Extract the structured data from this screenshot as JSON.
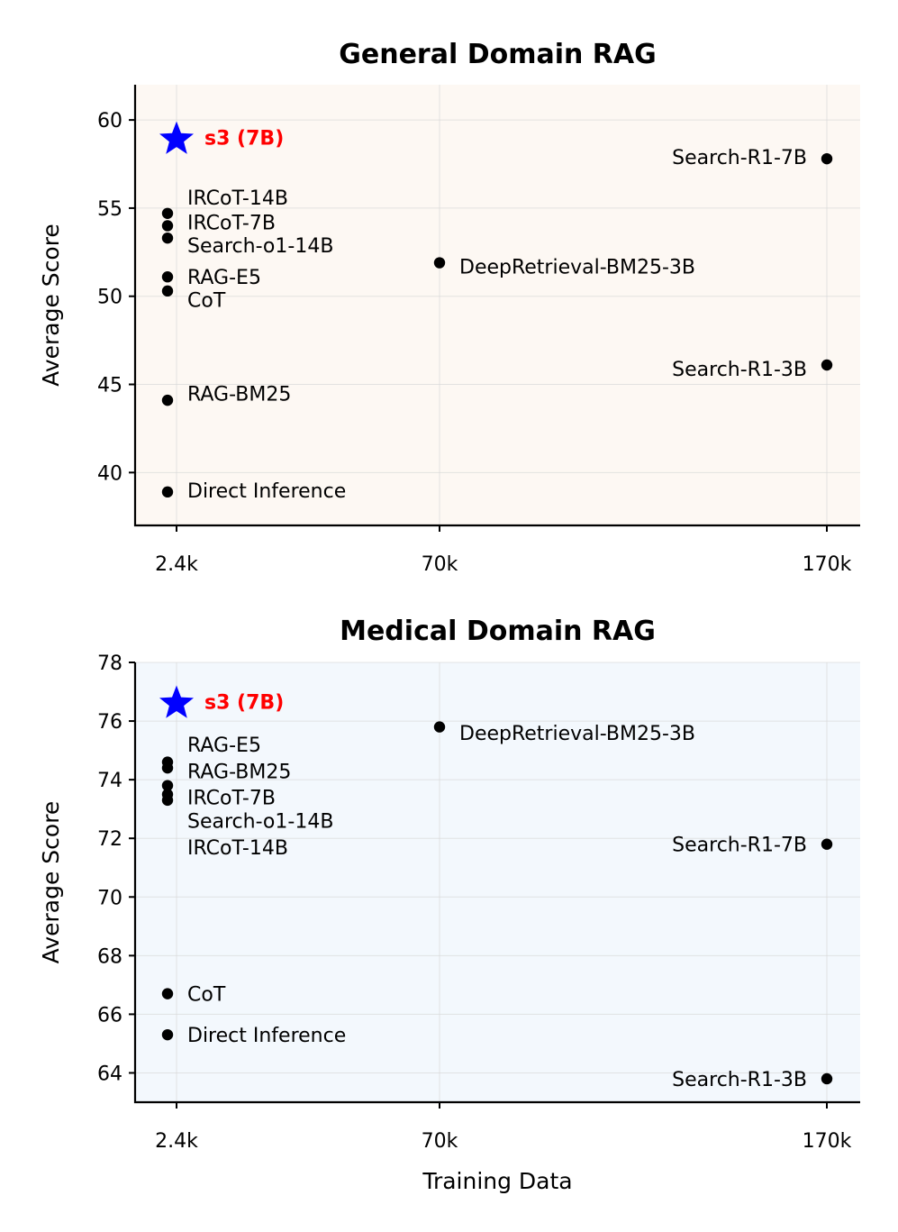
{
  "colors": {
    "general_bg": "#fdf8f3",
    "medical_bg": "#f3f8fd",
    "point": "#000000",
    "star": "#0000ff",
    "star_label": "#ff0000"
  },
  "chart_data": [
    {
      "type": "scatter",
      "title": "General Domain RAG",
      "xlabel": "",
      "ylabel": "Average Score",
      "xticks": [
        "2.4k",
        "70k",
        "170k"
      ],
      "ylim": [
        37,
        62
      ],
      "yticks": [
        40,
        45,
        50,
        55,
        60
      ],
      "grid": true,
      "highlight": {
        "label": "s3 (7B)",
        "x": "2.4k",
        "y": 58.9
      },
      "points": [
        {
          "label": "IRCoT-14B",
          "x": "2.4k",
          "y": 54.7,
          "label_y": 55.6,
          "side": "right"
        },
        {
          "label": "IRCoT-7B",
          "x": "2.4k",
          "y": 54.0,
          "label_y": 54.2,
          "side": "right"
        },
        {
          "label": "Search-o1-14B",
          "x": "2.4k",
          "y": 53.3,
          "label_y": 52.9,
          "side": "right"
        },
        {
          "label": "RAG-E5",
          "x": "2.4k",
          "y": 51.1,
          "label_y": 51.1,
          "side": "right"
        },
        {
          "label": "CoT",
          "x": "2.4k",
          "y": 50.3,
          "label_y": 49.8,
          "side": "right"
        },
        {
          "label": "RAG-BM25",
          "x": "2.4k",
          "y": 44.1,
          "label_y": 44.5,
          "side": "right"
        },
        {
          "label": "Direct Inference",
          "x": "2.4k",
          "y": 38.9,
          "label_y": 39.0,
          "side": "right"
        },
        {
          "label": "DeepRetrieval-BM25-3B",
          "x": "70k",
          "y": 51.9,
          "label_y": 51.7,
          "side": "right"
        },
        {
          "label": "Search-R1-7B",
          "x": "170k",
          "y": 57.8,
          "label_y": 57.9,
          "side": "left"
        },
        {
          "label": "Search-R1-3B",
          "x": "170k",
          "y": 46.1,
          "label_y": 45.9,
          "side": "left"
        }
      ]
    },
    {
      "type": "scatter",
      "title": "Medical Domain RAG",
      "xlabel": "Training Data",
      "ylabel": "Average Score",
      "xticks": [
        "2.4k",
        "70k",
        "170k"
      ],
      "ylim": [
        63,
        78
      ],
      "yticks": [
        64,
        66,
        68,
        70,
        72,
        74,
        76,
        78
      ],
      "grid": true,
      "highlight": {
        "label": "s3 (7B)",
        "x": "2.4k",
        "y": 76.6
      },
      "points": [
        {
          "label": "RAG-E5",
          "x": "2.4k",
          "y": 74.6,
          "label_y": 75.2,
          "side": "right"
        },
        {
          "label": "RAG-BM25",
          "x": "2.4k",
          "y": 74.4,
          "label_y": 74.3,
          "side": "right"
        },
        {
          "label": "IRCoT-7B",
          "x": "2.4k",
          "y": 73.8,
          "label_y": 73.4,
          "side": "right"
        },
        {
          "label": "Search-o1-14B",
          "x": "2.4k",
          "y": 73.5,
          "label_y": 72.6,
          "side": "right"
        },
        {
          "label": "IRCoT-14B",
          "x": "2.4k",
          "y": 73.3,
          "label_y": 71.7,
          "side": "right"
        },
        {
          "label": "CoT",
          "x": "2.4k",
          "y": 66.7,
          "label_y": 66.7,
          "side": "right"
        },
        {
          "label": "Direct Inference",
          "x": "2.4k",
          "y": 65.3,
          "label_y": 65.3,
          "side": "right"
        },
        {
          "label": "DeepRetrieval-BM25-3B",
          "x": "70k",
          "y": 75.8,
          "label_y": 75.6,
          "side": "right"
        },
        {
          "label": "Search-R1-7B",
          "x": "170k",
          "y": 71.8,
          "label_y": 71.8,
          "side": "left"
        },
        {
          "label": "Search-R1-3B",
          "x": "170k",
          "y": 63.8,
          "label_y": 63.8,
          "side": "left"
        }
      ]
    }
  ]
}
